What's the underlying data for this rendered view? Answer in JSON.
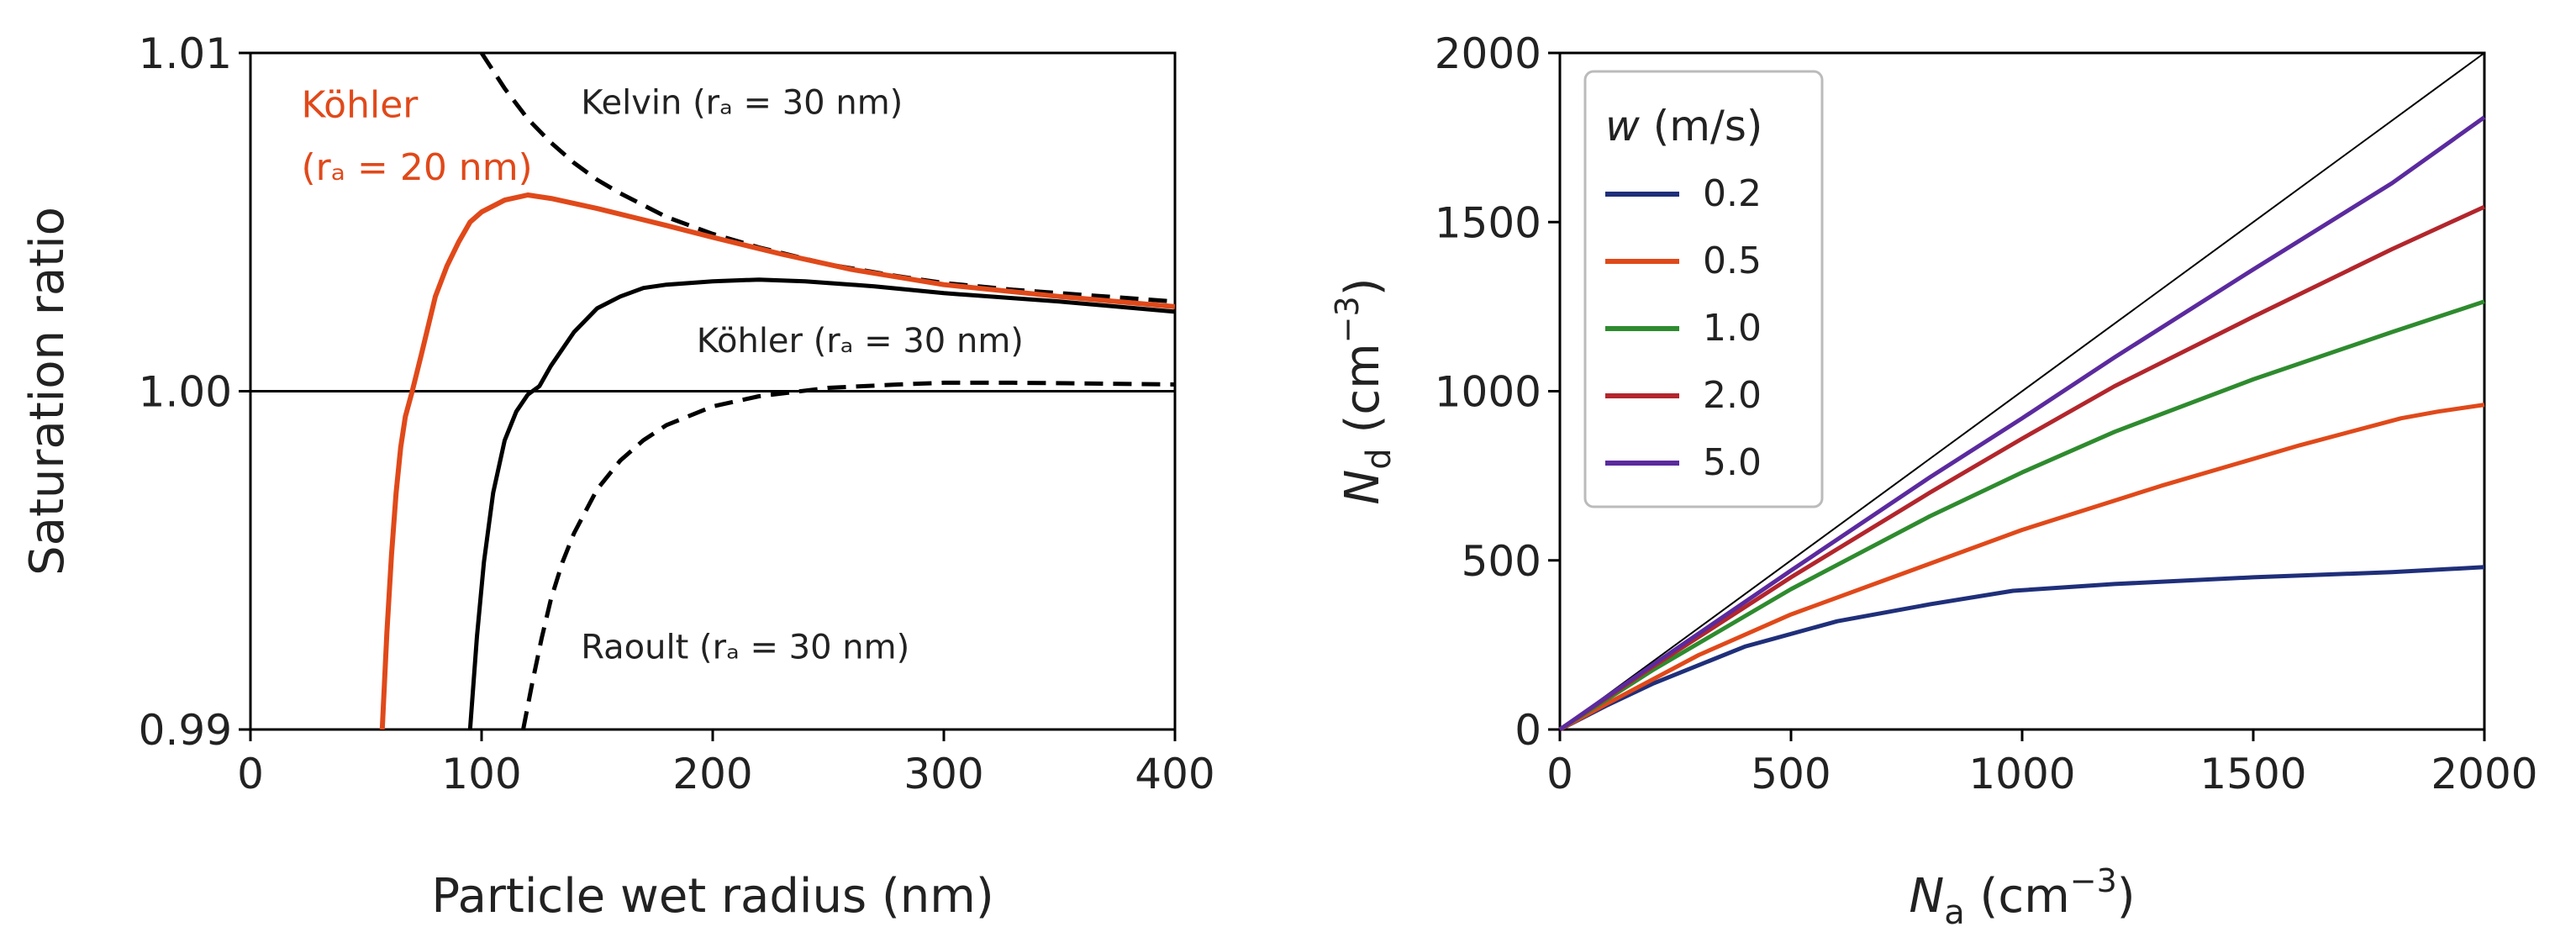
{
  "chart_data": [
    {
      "type": "line",
      "xlabel": "Particle wet radius (nm)",
      "ylabel": "Saturation ratio",
      "xlim": [
        0,
        400
      ],
      "ylim": [
        0.99,
        1.01
      ],
      "xticks": [
        0,
        100,
        200,
        300,
        400
      ],
      "xtick_labels": [
        "0",
        "100",
        "200",
        "300",
        "400"
      ],
      "yticks": [
        0.99,
        1.0,
        1.01
      ],
      "ytick_labels": [
        "0.99",
        "1.00",
        "1.01"
      ],
      "grid": false,
      "reference_line": {
        "y": 1.0,
        "color": "#000000"
      },
      "series": [
        {
          "color": "#000000",
          "dash": true,
          "x": [
            100,
            110,
            120,
            130,
            140,
            150,
            160,
            180,
            200,
            220,
            250,
            280,
            300,
            330,
            360,
            400
          ],
          "y": [
            1.01,
            1.00895,
            1.00805,
            1.00735,
            1.00675,
            1.00625,
            1.00585,
            1.00515,
            1.00465,
            1.00425,
            1.00375,
            1.0034,
            1.0032,
            1.003,
            1.00285,
            1.00265
          ]
        },
        {
          "color": "#000000",
          "dash": true,
          "x": [
            118,
            122,
            126,
            130,
            135,
            140,
            150,
            160,
            170,
            180,
            200,
            220,
            250,
            280,
            300,
            330,
            360,
            400
          ],
          "y": [
            0.99,
            0.9914,
            0.9927,
            0.99385,
            0.99495,
            0.9958,
            0.9971,
            0.99795,
            0.99855,
            0.999,
            0.99955,
            0.99985,
            1.0001,
            1.0002,
            1.00025,
            1.00025,
            1.00023,
            1.0002
          ]
        },
        {
          "color": "#E0491A",
          "dash": false,
          "x": [
            57,
            59,
            61,
            63,
            65,
            67,
            70,
            74,
            80,
            85,
            90,
            95,
            100,
            110,
            120,
            130,
            150,
            180,
            200,
            230,
            260,
            300,
            350,
            400
          ],
          "y": [
            0.99,
            0.99285,
            0.99515,
            0.997,
            0.99835,
            0.99925,
            1.0,
            1.0011,
            1.0028,
            1.0037,
            1.0044,
            1.005,
            1.0053,
            1.00565,
            1.0058,
            1.0057,
            1.0054,
            1.0049,
            1.00455,
            1.00405,
            1.0036,
            1.00315,
            1.0028,
            1.0025
          ]
        },
        {
          "color": "#000000",
          "dash": false,
          "x": [
            95,
            98,
            101,
            105,
            110,
            115,
            120,
            125,
            130,
            140,
            150,
            160,
            170,
            180,
            200,
            220,
            240,
            270,
            300,
            350,
            400
          ],
          "y": [
            0.99,
            0.99275,
            0.99495,
            0.997,
            0.99855,
            0.9994,
            0.9999,
            1.00015,
            1.00075,
            1.00175,
            1.00245,
            1.0028,
            1.00305,
            1.00315,
            1.00325,
            1.0033,
            1.00325,
            1.0031,
            1.0029,
            1.00265,
            1.00235
          ]
        }
      ],
      "annotations": [
        {
          "text": "Köhler",
          "color": "#E0491A",
          "x": 22,
          "y": 1.0081,
          "size": "big"
        },
        {
          "text": "(rₐ = 20 nm)",
          "color": "#E0491A",
          "x": 22,
          "y": 1.00625,
          "size": "big"
        },
        {
          "text": "Kelvin (rₐ = 30 nm)",
          "color": "#222222",
          "x": 143,
          "y": 1.0082,
          "size": "small"
        },
        {
          "text": "Köhler (rₐ = 30 nm)",
          "color": "#222222",
          "x": 193,
          "y": 1.00115,
          "size": "small"
        },
        {
          "text": "Raoult (rₐ = 30 nm)",
          "color": "#222222",
          "x": 143,
          "y": 0.9921,
          "size": "small"
        }
      ]
    },
    {
      "type": "line",
      "xlabel": "Nₐ (cm⁻³)",
      "ylabel": "N_d (cm⁻³)",
      "xlim": [
        0,
        2000
      ],
      "ylim": [
        0,
        2000
      ],
      "xticks": [
        0,
        500,
        1000,
        1500,
        2000
      ],
      "xtick_labels": [
        "0",
        "500",
        "1000",
        "1500",
        "2000"
      ],
      "yticks": [
        0,
        500,
        1000,
        1500,
        2000
      ],
      "ytick_labels": [
        "0",
        "500",
        "1000",
        "1500",
        "2000"
      ],
      "grid": false,
      "reference_line": {
        "x": [
          0,
          2000
        ],
        "y": [
          0,
          2000
        ],
        "color": "#000000"
      },
      "legend": {
        "title": "w (m/s)",
        "position": "top-left"
      },
      "series": [
        {
          "name": "0.2",
          "color": "#1F2F7A",
          "x": [
            0,
            100,
            200,
            400,
            600,
            800,
            980,
            1200,
            1500,
            1800,
            2000
          ],
          "y": [
            0,
            70,
            135,
            245,
            320,
            370,
            410,
            430,
            450,
            465,
            480
          ]
        },
        {
          "name": "0.5",
          "color": "#E0491A",
          "x": [
            0,
            100,
            300,
            500,
            700,
            1000,
            1300,
            1600,
            1820,
            1900,
            2000
          ],
          "y": [
            0,
            75,
            220,
            340,
            440,
            590,
            720,
            840,
            920,
            940,
            960
          ]
        },
        {
          "name": "1.0",
          "color": "#2E8B2E",
          "x": [
            0,
            200,
            500,
            800,
            1000,
            1200,
            1500,
            1800,
            2000
          ],
          "y": [
            0,
            175,
            415,
            630,
            760,
            880,
            1035,
            1175,
            1265
          ]
        },
        {
          "name": "2.0",
          "color": "#B2262C",
          "x": [
            0,
            200,
            500,
            800,
            1000,
            1200,
            1500,
            1800,
            2000
          ],
          "y": [
            0,
            185,
            450,
            700,
            860,
            1015,
            1220,
            1420,
            1545
          ]
        },
        {
          "name": "5.0",
          "color": "#5B2A9E",
          "x": [
            0,
            200,
            500,
            800,
            1000,
            1200,
            1500,
            1800,
            2000
          ],
          "y": [
            0,
            190,
            470,
            745,
            920,
            1100,
            1360,
            1615,
            1810
          ]
        }
      ]
    }
  ]
}
